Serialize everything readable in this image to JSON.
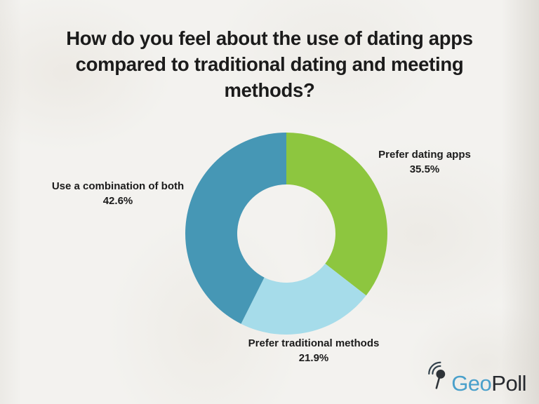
{
  "page": {
    "background_color": "#f3f2ef",
    "text_color": "#1b1b1b"
  },
  "title": {
    "text": "How do you feel about the use of dating apps compared to traditional dating and meeting methods?",
    "lines": [
      "How do you feel about the use of dating apps",
      "compared to traditional dating and meeting",
      "methods?"
    ]
  },
  "chart_data": {
    "type": "pie",
    "subtype": "donut",
    "title": "How do you feel about the use of dating apps compared to traditional dating and meeting methods?",
    "start_angle_deg": 0,
    "direction": "clockwise",
    "inner_radius_ratio": 0.487,
    "legend_position": "outside-labels",
    "segments": [
      {
        "label": "Prefer dating apps",
        "value": 35.5,
        "value_label": "35.5%",
        "color": "#8dc63f",
        "label_position": "right"
      },
      {
        "label": "Prefer traditional methods",
        "value": 21.9,
        "value_label": "21.9%",
        "color": "#a6dcea",
        "label_position": "bottom"
      },
      {
        "label": "Use a combination of both",
        "value": 42.6,
        "value_label": "42.6%",
        "color": "#4697b5",
        "label_position": "left"
      }
    ]
  },
  "logo": {
    "name": "GeoPoll",
    "part1": "Geo",
    "part2": "Poll",
    "blue_color": "#4aa0cb",
    "dark_color": "#26292e",
    "icon": "map-pin-with-signal-waves"
  }
}
